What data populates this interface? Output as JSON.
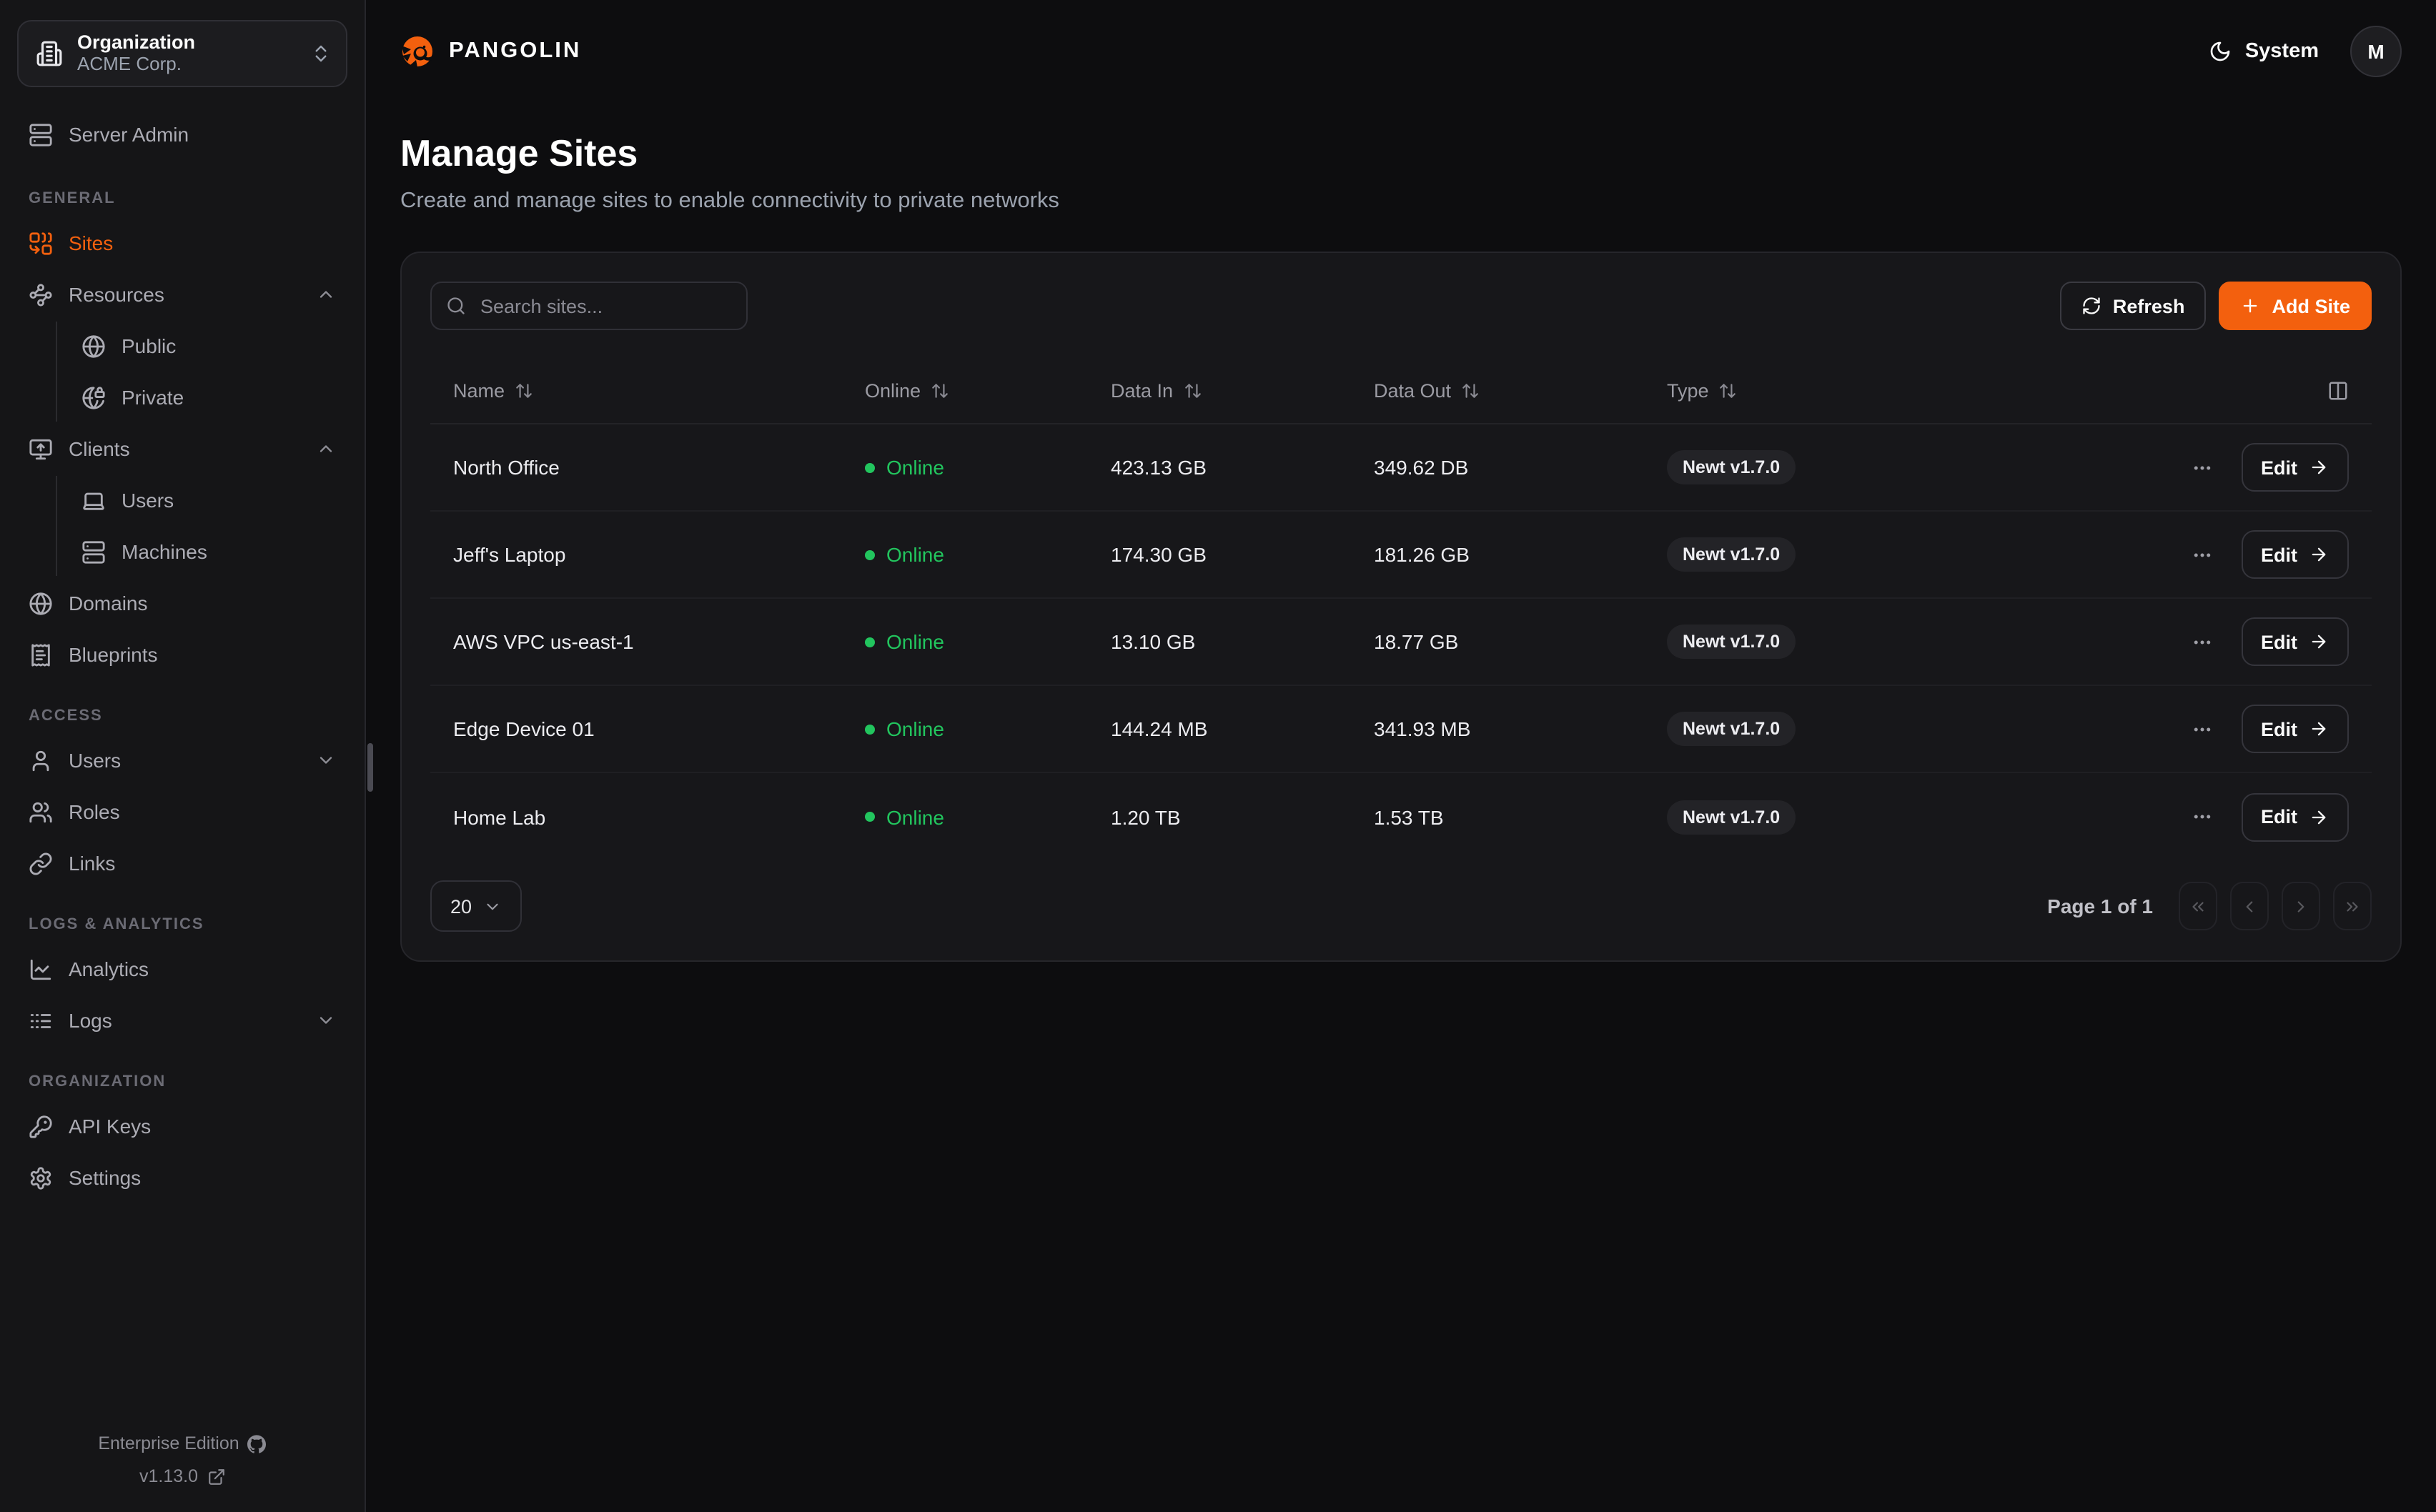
{
  "brand": {
    "name": "PANGOLIN"
  },
  "org_switcher": {
    "label": "Organization",
    "value": "ACME Corp."
  },
  "topbar": {
    "theme_label": "System",
    "avatar_initial": "M"
  },
  "sidebar": {
    "server_admin": {
      "label": "Server Admin",
      "icon": "server"
    },
    "sections": [
      {
        "label": "GENERAL",
        "items": [
          {
            "label": "Sites",
            "icon": "combine",
            "active": true
          },
          {
            "label": "Resources",
            "icon": "waypoints",
            "chevron": "up",
            "children": [
              {
                "label": "Public",
                "icon": "globe"
              },
              {
                "label": "Private",
                "icon": "globe-lock"
              }
            ]
          },
          {
            "label": "Clients",
            "icon": "monitor-up",
            "chevron": "up",
            "children": [
              {
                "label": "Users",
                "icon": "laptop"
              },
              {
                "label": "Machines",
                "icon": "server"
              }
            ]
          },
          {
            "label": "Domains",
            "icon": "globe"
          },
          {
            "label": "Blueprints",
            "icon": "receipt"
          }
        ]
      },
      {
        "label": "ACCESS",
        "items": [
          {
            "label": "Users",
            "icon": "user",
            "chevron": "down"
          },
          {
            "label": "Roles",
            "icon": "users"
          },
          {
            "label": "Links",
            "icon": "link"
          }
        ]
      },
      {
        "label": "LOGS & ANALYTICS",
        "items": [
          {
            "label": "Analytics",
            "icon": "chart-line"
          },
          {
            "label": "Logs",
            "icon": "logs",
            "chevron": "down"
          }
        ]
      },
      {
        "label": "ORGANIZATION",
        "items": [
          {
            "label": "API Keys",
            "icon": "key"
          },
          {
            "label": "Settings",
            "icon": "settings"
          }
        ]
      }
    ],
    "footer": {
      "edition": "Enterprise Edition",
      "version": "v1.13.0"
    }
  },
  "page": {
    "title": "Manage Sites",
    "subtitle": "Create and manage sites to enable connectivity to private networks"
  },
  "toolbar": {
    "search_placeholder": "Search sites...",
    "refresh_label": "Refresh",
    "add_site_label": "Add Site"
  },
  "table": {
    "columns": {
      "name": "Name",
      "online": "Online",
      "data_in": "Data In",
      "data_out": "Data Out",
      "type": "Type"
    },
    "rows": [
      {
        "name": "North Office",
        "status": "Online",
        "data_in": "423.13 GB",
        "data_out": "349.62 DB",
        "type": "Newt v1.7.0",
        "action": "Edit"
      },
      {
        "name": "Jeff's Laptop",
        "status": "Online",
        "data_in": "174.30 GB",
        "data_out": "181.26 GB",
        "type": "Newt v1.7.0",
        "action": "Edit"
      },
      {
        "name": "AWS VPC us-east-1",
        "status": "Online",
        "data_in": "13.10 GB",
        "data_out": "18.77 GB",
        "type": "Newt v1.7.0",
        "action": "Edit"
      },
      {
        "name": "Edge Device 01",
        "status": "Online",
        "data_in": "144.24 MB",
        "data_out": "341.93 MB",
        "type": "Newt v1.7.0",
        "action": "Edit"
      },
      {
        "name": "Home Lab",
        "status": "Online",
        "data_in": "1.20 TB",
        "data_out": "1.53 TB",
        "type": "Newt v1.7.0",
        "action": "Edit"
      }
    ]
  },
  "pagination": {
    "page_size": "20",
    "page_info": "Page 1 of 1"
  },
  "colors": {
    "accent": "#f3600e",
    "online_green": "#22c55e"
  }
}
